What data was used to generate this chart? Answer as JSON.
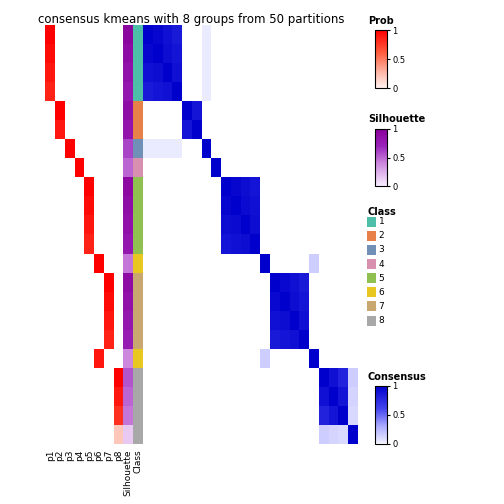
{
  "title": "consensus kmeans with 8 groups from 50 partitions",
  "n_samples": 22,
  "n_groups": 8,
  "class_colors": {
    "1": "#4DBFA8",
    "2": "#E8804A",
    "3": "#7090B8",
    "4": "#D890B0",
    "5": "#90C050",
    "6": "#E8C820",
    "7": "#C8A870",
    "8": "#A8A8A8"
  },
  "sample_classes": [
    1,
    1,
    1,
    1,
    2,
    2,
    3,
    4,
    5,
    5,
    5,
    5,
    6,
    7,
    7,
    7,
    7,
    6,
    8,
    8,
    8,
    8
  ],
  "sample_silhouettes": [
    0.95,
    0.9,
    0.85,
    0.8,
    0.88,
    0.82,
    0.6,
    0.5,
    0.92,
    0.88,
    0.85,
    0.8,
    0.45,
    0.9,
    0.85,
    0.8,
    0.75,
    0.4,
    0.55,
    0.5,
    0.45,
    0.15
  ],
  "prob_data": [
    [
      1.0,
      0.95,
      0.9,
      0.85,
      0.0,
      0.0,
      0.0,
      0.0,
      0.0,
      0.0,
      0.0,
      0.0,
      0.0,
      0.0,
      0.0,
      0.0,
      0.0,
      0.0,
      0.0,
      0.0,
      0.0,
      0.0
    ],
    [
      0.0,
      0.0,
      0.0,
      0.0,
      1.0,
      0.9,
      0.0,
      0.0,
      0.0,
      0.0,
      0.0,
      0.0,
      0.0,
      0.0,
      0.0,
      0.0,
      0.0,
      0.0,
      0.0,
      0.0,
      0.0,
      0.0
    ],
    [
      0.0,
      0.0,
      0.0,
      0.0,
      0.0,
      0.0,
      1.0,
      0.0,
      0.0,
      0.0,
      0.0,
      0.0,
      0.0,
      0.0,
      0.0,
      0.0,
      0.0,
      0.0,
      0.0,
      0.0,
      0.0,
      0.0
    ],
    [
      0.0,
      0.0,
      0.0,
      0.0,
      0.0,
      0.0,
      0.0,
      1.0,
      0.0,
      0.0,
      0.0,
      0.0,
      0.0,
      0.0,
      0.0,
      0.0,
      0.0,
      0.0,
      0.0,
      0.0,
      0.0,
      0.0
    ],
    [
      0.0,
      0.0,
      0.0,
      0.0,
      0.0,
      0.0,
      0.0,
      0.0,
      1.0,
      0.95,
      0.9,
      0.85,
      0.0,
      0.0,
      0.0,
      0.0,
      0.0,
      0.0,
      0.0,
      0.0,
      0.0,
      0.0
    ],
    [
      0.0,
      0.0,
      0.0,
      0.0,
      0.0,
      0.0,
      0.0,
      0.0,
      0.0,
      0.0,
      0.0,
      0.0,
      1.0,
      0.0,
      0.0,
      0.0,
      0.0,
      0.9,
      0.0,
      0.0,
      0.0,
      0.0
    ],
    [
      0.0,
      0.0,
      0.0,
      0.0,
      0.0,
      0.0,
      0.0,
      0.0,
      0.0,
      0.0,
      0.0,
      0.0,
      0.0,
      1.0,
      0.95,
      0.9,
      0.85,
      0.0,
      0.0,
      0.0,
      0.0,
      0.0
    ],
    [
      0.0,
      0.0,
      0.0,
      0.0,
      0.0,
      0.0,
      0.0,
      0.0,
      0.0,
      0.0,
      0.0,
      0.0,
      0.0,
      0.0,
      0.0,
      0.0,
      0.0,
      0.0,
      1.0,
      0.9,
      0.8,
      0.2
    ]
  ],
  "consensus_matrix": [
    [
      1.0,
      0.96,
      0.9,
      0.85,
      0.0,
      0.0,
      0.02,
      0.0,
      0.0,
      0.0,
      0.0,
      0.0,
      0.0,
      0.0,
      0.0,
      0.0,
      0.0,
      0.0,
      0.0,
      0.0,
      0.0,
      0.0
    ],
    [
      0.96,
      1.0,
      0.92,
      0.88,
      0.0,
      0.0,
      0.02,
      0.0,
      0.0,
      0.0,
      0.0,
      0.0,
      0.0,
      0.0,
      0.0,
      0.0,
      0.0,
      0.0,
      0.0,
      0.0,
      0.0,
      0.0
    ],
    [
      0.9,
      0.92,
      1.0,
      0.9,
      0.0,
      0.0,
      0.02,
      0.0,
      0.0,
      0.0,
      0.0,
      0.0,
      0.0,
      0.0,
      0.0,
      0.0,
      0.0,
      0.0,
      0.0,
      0.0,
      0.0,
      0.0
    ],
    [
      0.85,
      0.88,
      0.9,
      1.0,
      0.0,
      0.0,
      0.02,
      0.0,
      0.0,
      0.0,
      0.0,
      0.0,
      0.0,
      0.0,
      0.0,
      0.0,
      0.0,
      0.0,
      0.0,
      0.0,
      0.0,
      0.0
    ],
    [
      0.0,
      0.0,
      0.0,
      0.0,
      1.0,
      0.88,
      0.0,
      0.0,
      0.0,
      0.0,
      0.0,
      0.0,
      0.0,
      0.0,
      0.0,
      0.0,
      0.0,
      0.0,
      0.0,
      0.0,
      0.0,
      0.0
    ],
    [
      0.0,
      0.0,
      0.0,
      0.0,
      0.88,
      1.0,
      0.0,
      0.0,
      0.0,
      0.0,
      0.0,
      0.0,
      0.0,
      0.0,
      0.0,
      0.0,
      0.0,
      0.0,
      0.0,
      0.0,
      0.0,
      0.0
    ],
    [
      0.02,
      0.02,
      0.02,
      0.02,
      0.0,
      0.0,
      1.0,
      0.0,
      0.0,
      0.0,
      0.0,
      0.0,
      0.0,
      0.0,
      0.0,
      0.0,
      0.0,
      0.0,
      0.0,
      0.0,
      0.0,
      0.0
    ],
    [
      0.0,
      0.0,
      0.0,
      0.0,
      0.0,
      0.0,
      0.0,
      1.0,
      0.0,
      0.0,
      0.0,
      0.0,
      0.0,
      0.0,
      0.0,
      0.0,
      0.0,
      0.0,
      0.0,
      0.0,
      0.0,
      0.0
    ],
    [
      0.0,
      0.0,
      0.0,
      0.0,
      0.0,
      0.0,
      0.0,
      0.0,
      1.0,
      0.96,
      0.92,
      0.88,
      0.0,
      0.0,
      0.0,
      0.0,
      0.0,
      0.0,
      0.0,
      0.0,
      0.0,
      0.0
    ],
    [
      0.0,
      0.0,
      0.0,
      0.0,
      0.0,
      0.0,
      0.0,
      0.0,
      0.96,
      1.0,
      0.94,
      0.9,
      0.0,
      0.0,
      0.0,
      0.0,
      0.0,
      0.0,
      0.0,
      0.0,
      0.0,
      0.0
    ],
    [
      0.0,
      0.0,
      0.0,
      0.0,
      0.0,
      0.0,
      0.0,
      0.0,
      0.92,
      0.94,
      1.0,
      0.92,
      0.0,
      0.0,
      0.0,
      0.0,
      0.0,
      0.0,
      0.0,
      0.0,
      0.0,
      0.0
    ],
    [
      0.0,
      0.0,
      0.0,
      0.0,
      0.0,
      0.0,
      0.0,
      0.0,
      0.88,
      0.9,
      0.92,
      1.0,
      0.0,
      0.0,
      0.0,
      0.0,
      0.0,
      0.0,
      0.0,
      0.0,
      0.0,
      0.0
    ],
    [
      0.0,
      0.0,
      0.0,
      0.0,
      0.0,
      0.0,
      0.0,
      0.0,
      0.0,
      0.0,
      0.0,
      0.0,
      1.0,
      0.0,
      0.0,
      0.0,
      0.0,
      0.15,
      0.0,
      0.0,
      0.0,
      0.0
    ],
    [
      0.0,
      0.0,
      0.0,
      0.0,
      0.0,
      0.0,
      0.0,
      0.0,
      0.0,
      0.0,
      0.0,
      0.0,
      0.0,
      1.0,
      0.95,
      0.9,
      0.85,
      0.0,
      0.0,
      0.0,
      0.0,
      0.0
    ],
    [
      0.0,
      0.0,
      0.0,
      0.0,
      0.0,
      0.0,
      0.0,
      0.0,
      0.0,
      0.0,
      0.0,
      0.0,
      0.0,
      0.95,
      1.0,
      0.92,
      0.88,
      0.0,
      0.0,
      0.0,
      0.0,
      0.0
    ],
    [
      0.0,
      0.0,
      0.0,
      0.0,
      0.0,
      0.0,
      0.0,
      0.0,
      0.0,
      0.0,
      0.0,
      0.0,
      0.0,
      0.9,
      0.92,
      1.0,
      0.9,
      0.0,
      0.0,
      0.0,
      0.0,
      0.0
    ],
    [
      0.0,
      0.0,
      0.0,
      0.0,
      0.0,
      0.0,
      0.0,
      0.0,
      0.0,
      0.0,
      0.0,
      0.0,
      0.0,
      0.85,
      0.88,
      0.9,
      1.0,
      0.0,
      0.0,
      0.0,
      0.0,
      0.0
    ],
    [
      0.0,
      0.0,
      0.0,
      0.0,
      0.0,
      0.0,
      0.0,
      0.0,
      0.0,
      0.0,
      0.0,
      0.0,
      0.15,
      0.0,
      0.0,
      0.0,
      0.0,
      1.0,
      0.0,
      0.0,
      0.0,
      0.0
    ],
    [
      0.0,
      0.0,
      0.0,
      0.0,
      0.0,
      0.0,
      0.0,
      0.0,
      0.0,
      0.0,
      0.0,
      0.0,
      0.0,
      0.0,
      0.0,
      0.0,
      0.0,
      0.0,
      1.0,
      0.9,
      0.8,
      0.15
    ],
    [
      0.0,
      0.0,
      0.0,
      0.0,
      0.0,
      0.0,
      0.0,
      0.0,
      0.0,
      0.0,
      0.0,
      0.0,
      0.0,
      0.0,
      0.0,
      0.0,
      0.0,
      0.0,
      0.9,
      1.0,
      0.88,
      0.12
    ],
    [
      0.0,
      0.0,
      0.0,
      0.0,
      0.0,
      0.0,
      0.0,
      0.0,
      0.0,
      0.0,
      0.0,
      0.0,
      0.0,
      0.0,
      0.0,
      0.0,
      0.0,
      0.0,
      0.8,
      0.88,
      1.0,
      0.1
    ],
    [
      0.0,
      0.0,
      0.0,
      0.0,
      0.0,
      0.0,
      0.0,
      0.0,
      0.0,
      0.0,
      0.0,
      0.0,
      0.0,
      0.0,
      0.0,
      0.0,
      0.0,
      0.0,
      0.15,
      0.12,
      0.1,
      1.0
    ]
  ]
}
